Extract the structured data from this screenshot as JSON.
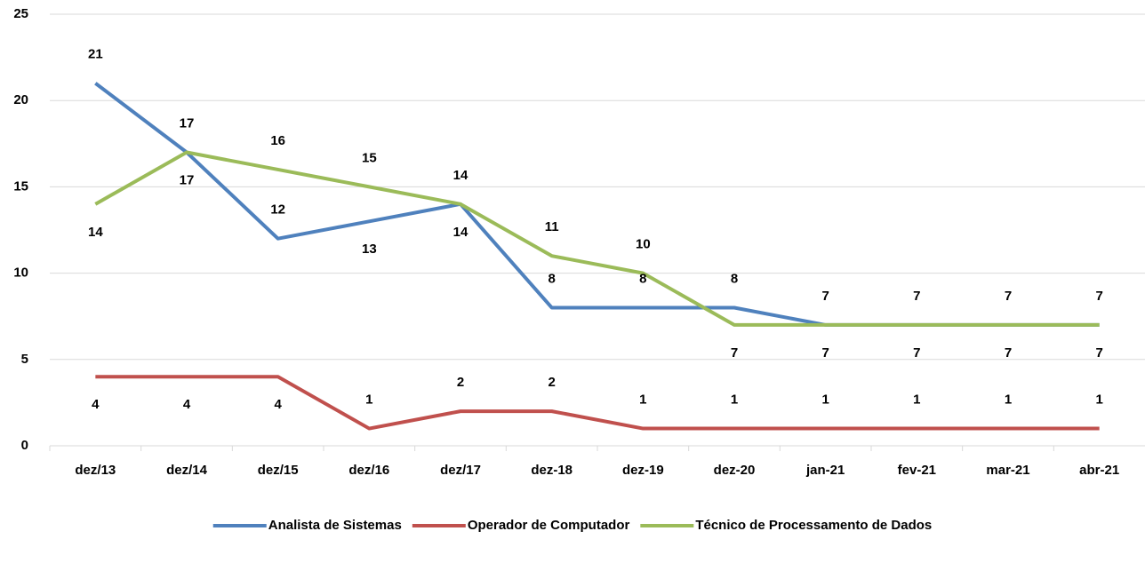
{
  "chart_data": {
    "type": "line",
    "categories": [
      "dez/13",
      "dez/14",
      "dez/15",
      "dez/16",
      "dez/17",
      "dez-18",
      "dez-19",
      "dez-20",
      "jan-21",
      "fev-21",
      "mar-21",
      "abr-21"
    ],
    "series": [
      {
        "name": "Analista de Sistemas",
        "color": "#4f81bd",
        "values": [
          21,
          17,
          12,
          13,
          14,
          8,
          8,
          8,
          7,
          7,
          7,
          7
        ]
      },
      {
        "name": "Operador de Computador",
        "color": "#c0504d",
        "values": [
          4,
          4,
          4,
          1,
          2,
          2,
          1,
          1,
          1,
          1,
          1,
          1
        ]
      },
      {
        "name": "Técnico de Processamento de Dados",
        "color": "#9bbb59",
        "values": [
          14,
          17,
          16,
          15,
          14,
          11,
          10,
          7,
          7,
          7,
          7,
          7
        ]
      }
    ],
    "ylim": [
      0,
      25
    ],
    "yticks": [
      0,
      5,
      10,
      15,
      20,
      25
    ],
    "grid": true,
    "legend": "bottom"
  }
}
